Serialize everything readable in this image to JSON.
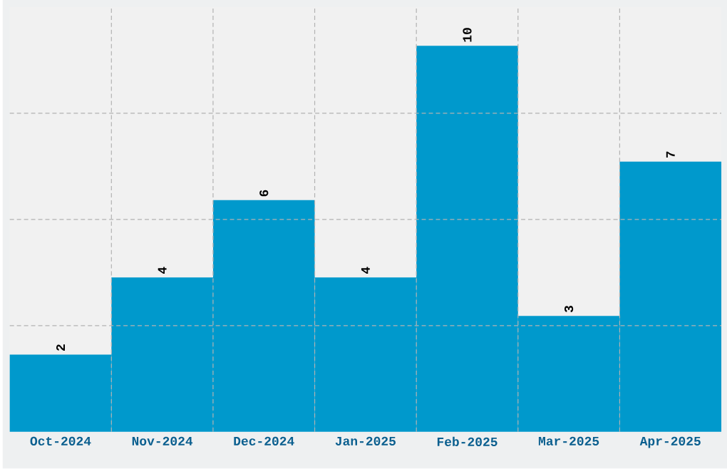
{
  "chart_data": {
    "type": "bar",
    "categories": [
      "Oct-2024",
      "Nov-2024",
      "Dec-2024",
      "Jan-2025",
      "Feb-2025",
      "Mar-2025",
      "Apr-2025"
    ],
    "values": [
      2,
      4,
      6,
      4,
      10,
      3,
      7
    ],
    "color": "#0099cc",
    "ylim": [
      0,
      11
    ],
    "yticks": [
      {
        "value": 2.75,
        "label": null
      },
      {
        "value": 5.5,
        "label": null
      },
      {
        "value": 8.25,
        "label": null
      }
    ],
    "tick_labels": "x",
    "grid": true,
    "data_labels": true
  }
}
